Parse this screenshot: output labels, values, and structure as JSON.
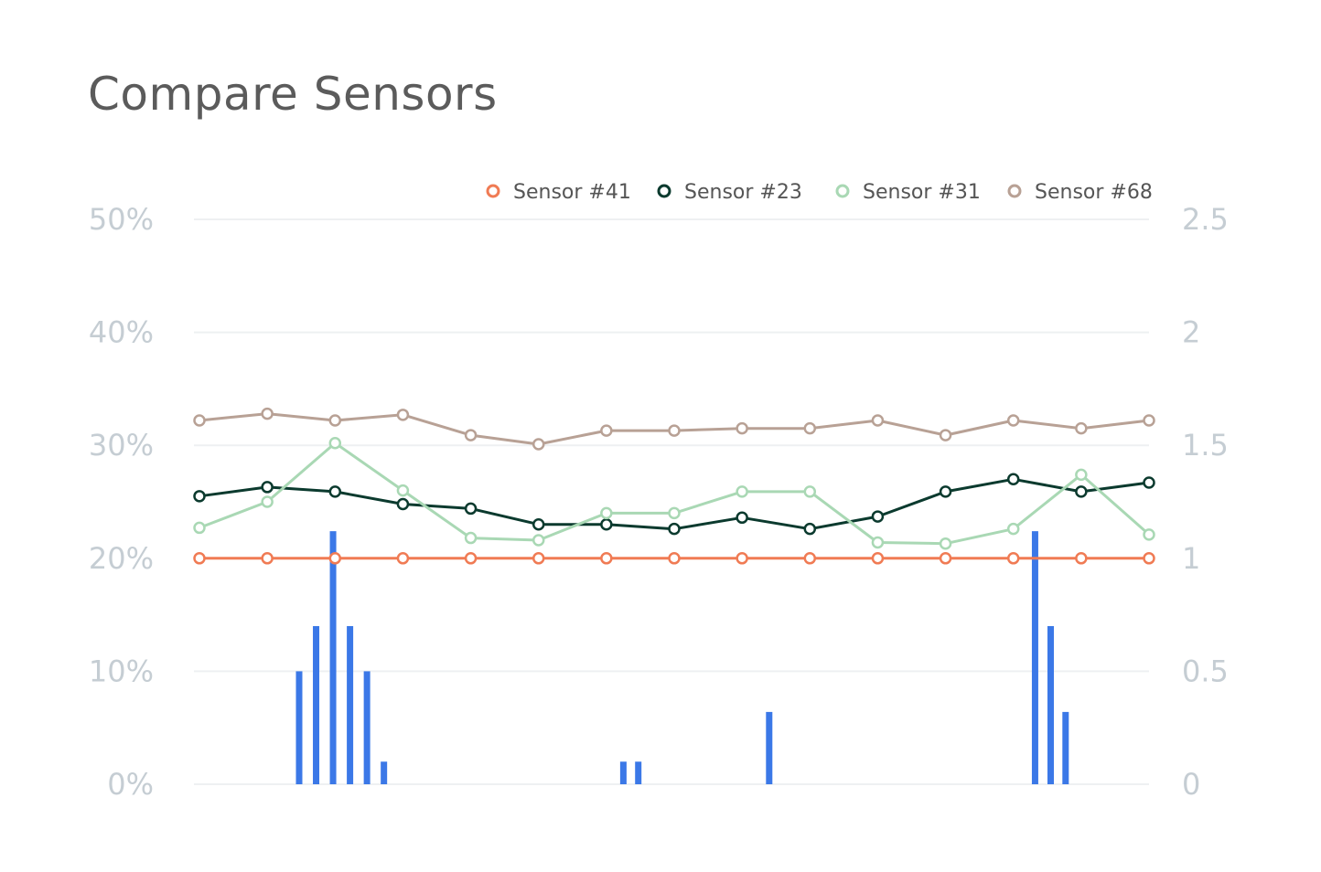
{
  "title": "Compare Sensors",
  "chart_data": {
    "type": "line",
    "title": "Compare Sensors",
    "x": [
      1,
      2,
      3,
      4,
      5,
      6,
      7,
      8,
      9,
      10,
      11,
      12,
      13,
      14,
      15
    ],
    "y_left": {
      "ticks": [
        "50%",
        "40%",
        "30%",
        "20%",
        "10%",
        "0%"
      ],
      "range": [
        0,
        50
      ]
    },
    "y_right": {
      "ticks": [
        "2.5",
        "2",
        "1.5",
        "1",
        "0.5",
        "0"
      ],
      "range": [
        0,
        2.5
      ]
    },
    "grid": true,
    "legend_position": "top-right",
    "series": [
      {
        "name": "Sensor #41",
        "color": "#f07b54",
        "axis": "left",
        "values": [
          20,
          20,
          20,
          20,
          20,
          20,
          20,
          20,
          20,
          20,
          20,
          20,
          20,
          20,
          20
        ]
      },
      {
        "name": "Sensor #23",
        "color": "#0b3a2e",
        "axis": "left",
        "values": [
          25.5,
          26.3,
          25.9,
          24.8,
          24.4,
          23.0,
          23.0,
          22.6,
          23.6,
          22.6,
          23.7,
          25.9,
          27.0,
          25.9,
          26.7
        ]
      },
      {
        "name": "Sensor #31",
        "color": "#a9d8b4",
        "axis": "left",
        "values": [
          22.7,
          25.0,
          30.2,
          26.0,
          21.8,
          21.6,
          24.0,
          24.0,
          25.9,
          25.9,
          21.4,
          21.3,
          22.6,
          27.4,
          22.1
        ]
      },
      {
        "name": "Sensor #68",
        "color": "#b8a195",
        "axis": "left",
        "values": [
          32.2,
          32.8,
          32.2,
          32.7,
          30.9,
          30.1,
          31.3,
          31.3,
          31.5,
          31.5,
          32.2,
          30.9,
          32.2,
          31.5,
          32.2
        ]
      }
    ],
    "bars": {
      "color": "#3b78e7",
      "axis": "right",
      "x": [
        2.47,
        2.72,
        2.97,
        3.22,
        3.47,
        3.72,
        7.25,
        7.47,
        9.4,
        13.32,
        13.55,
        13.77
      ],
      "values": [
        0.5,
        0.7,
        1.12,
        0.7,
        0.5,
        0.1,
        0.1,
        0.1,
        0.32,
        1.12,
        0.7,
        0.32
      ]
    }
  }
}
